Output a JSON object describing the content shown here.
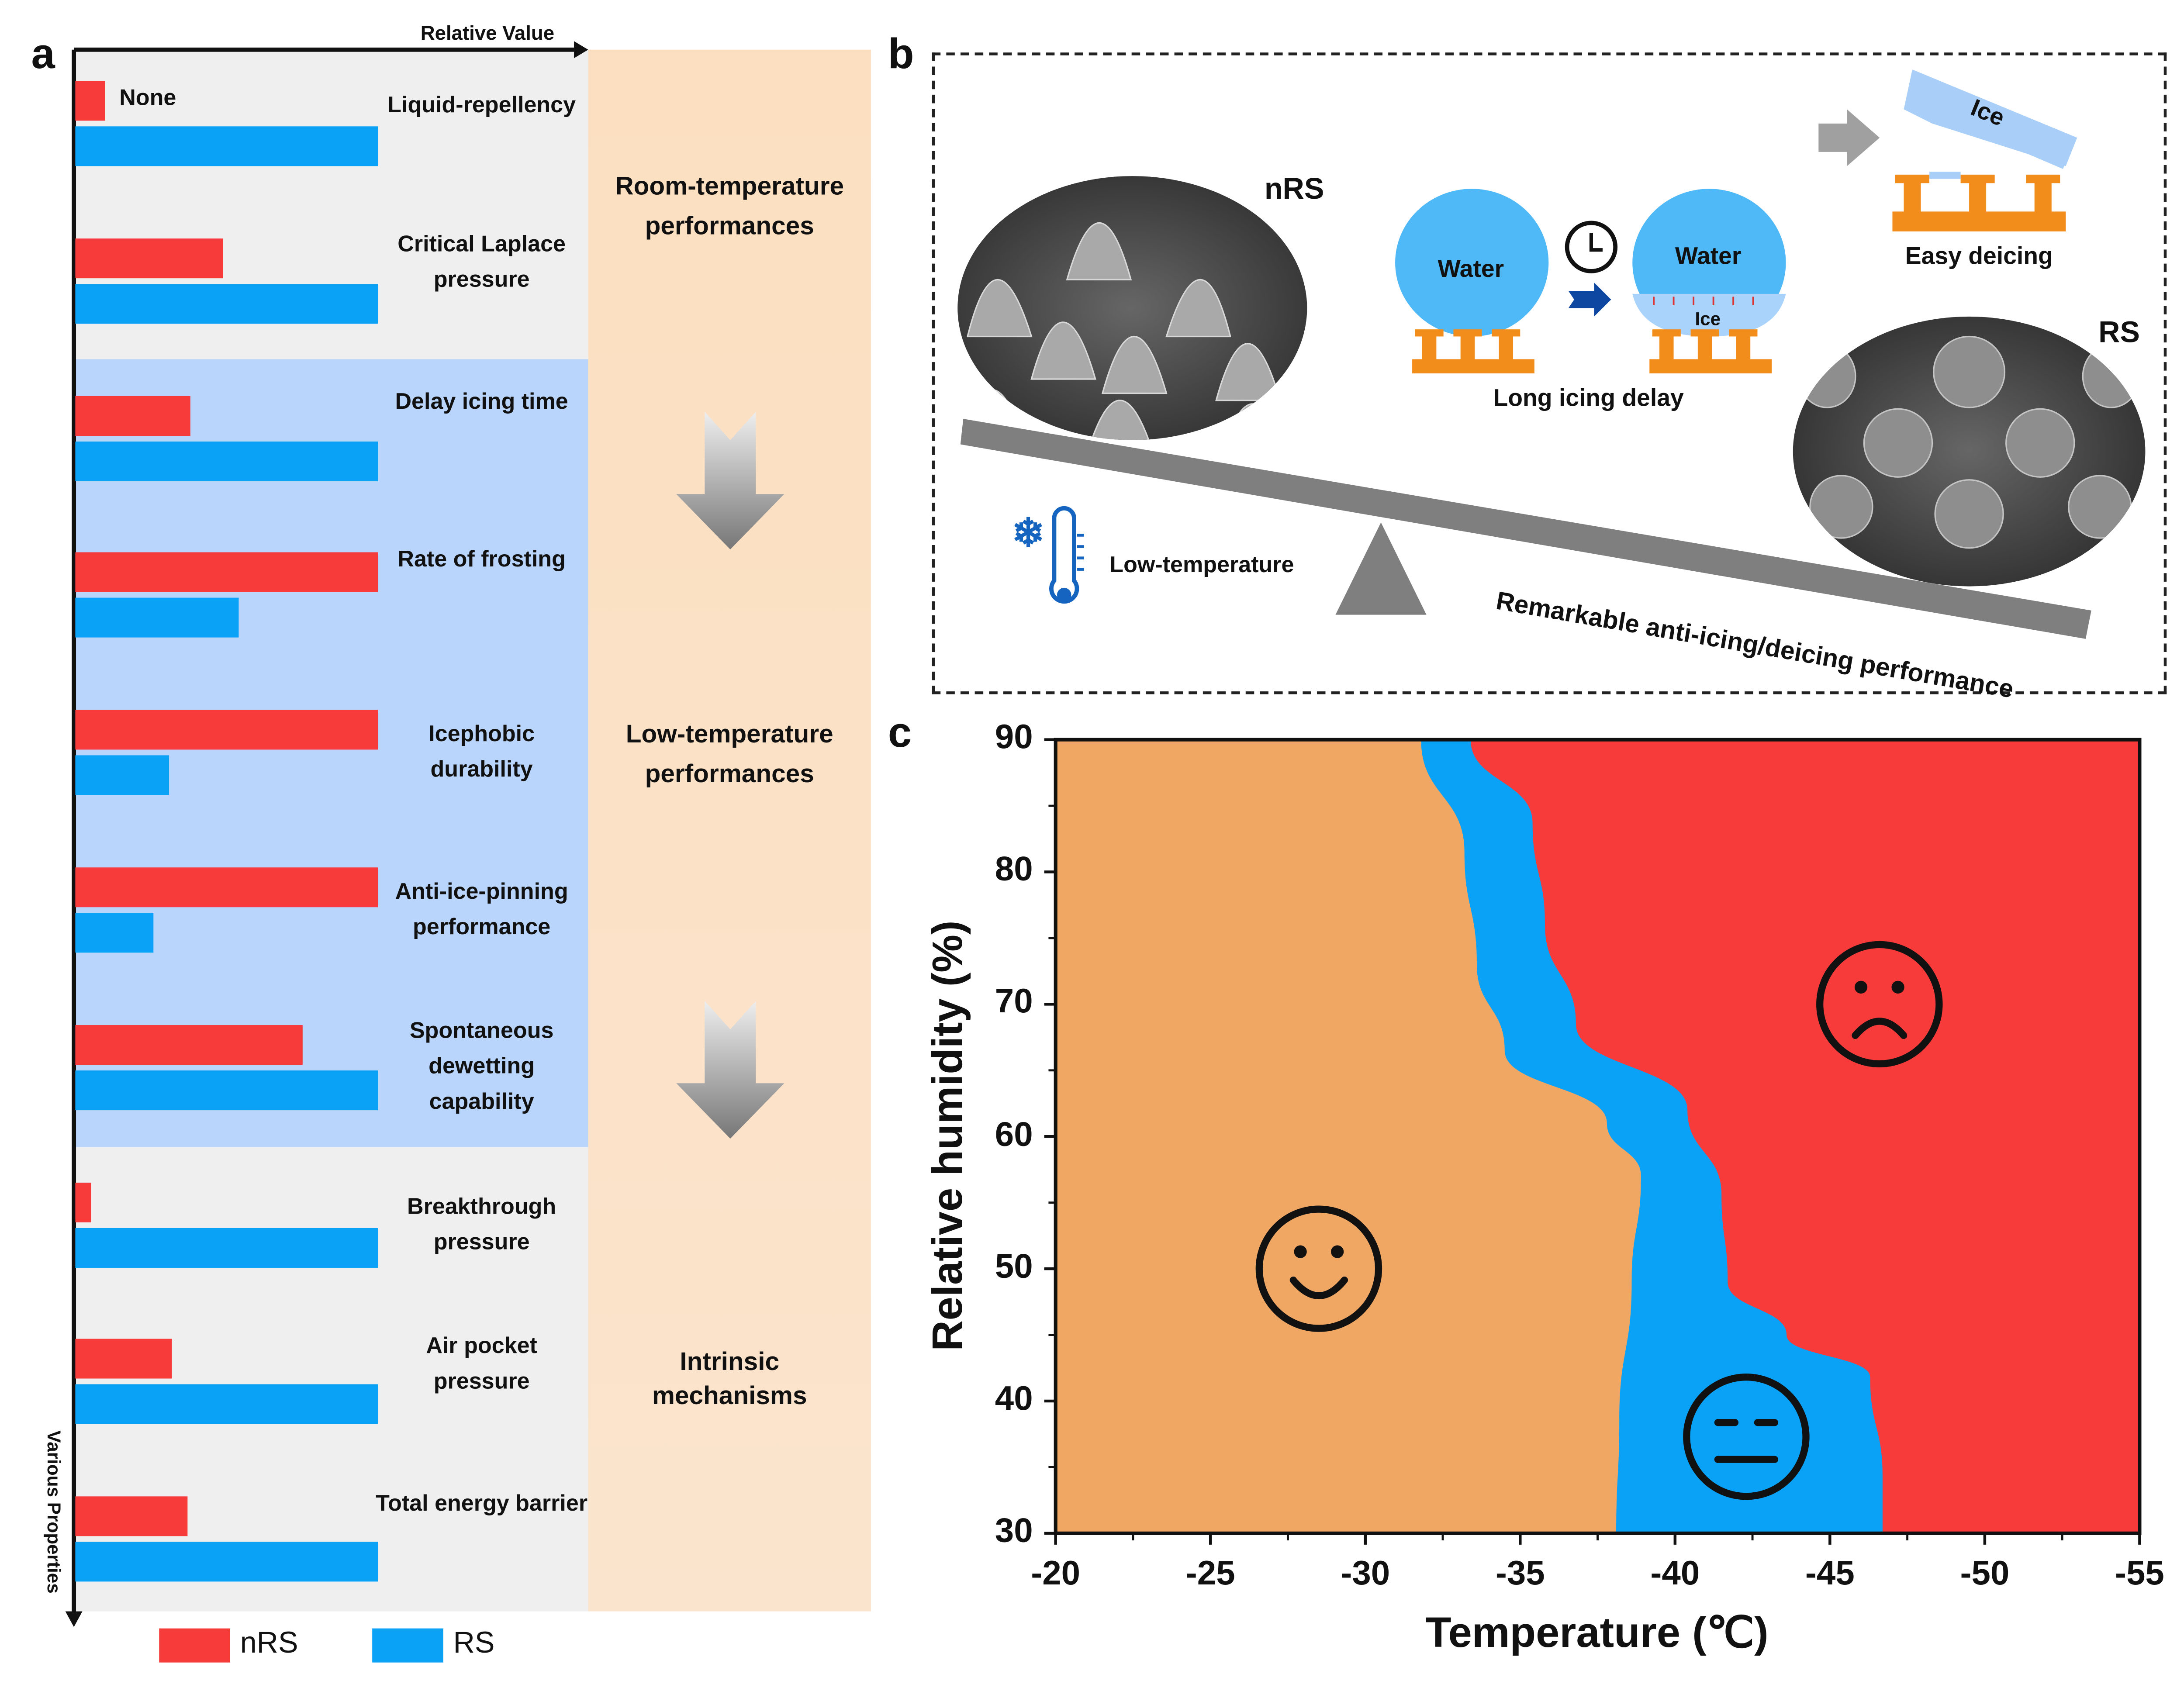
{
  "panel_labels": {
    "a": "a",
    "b": "b",
    "c": "c"
  },
  "colors": {
    "nRS": "#f73b3b",
    "RS": "#0aa2f6",
    "orange_region": "#f0a764",
    "blue_region": "#0aa2f6",
    "red_region": "#f73b3b"
  },
  "chart_data": [
    {
      "type": "bar",
      "orientation": "horizontal",
      "xlabel": "Relative Value",
      "ylabel": "Various Properties",
      "categories": [
        "Liquid-repellency",
        "Critical Laplace pressure",
        "Delay icing time",
        "Rate of frosting",
        "Icephobic durability",
        "Anti-ice-pinning performance",
        "Spontaneous dewetting capability",
        "Breakthrough pressure",
        "Air pocket pressure",
        "Total energy barrier"
      ],
      "series": [
        {
          "name": "nRS",
          "values": [
            0.1,
            0.49,
            0.38,
            1.0,
            1.0,
            1.0,
            0.75,
            0.05,
            0.32,
            0.37
          ]
        },
        {
          "name": "RS",
          "values": [
            1.0,
            1.0,
            1.0,
            0.54,
            0.31,
            0.26,
            1.0,
            1.0,
            1.0,
            1.0
          ]
        }
      ],
      "annotations": [
        "None"
      ],
      "groups": [
        {
          "label": "Room-temperature performances",
          "categories": [
            "Liquid-repellency",
            "Critical Laplace pressure"
          ]
        },
        {
          "label": "Low-temperature performances",
          "categories": [
            "Delay icing time",
            "Rate of frosting",
            "Icephobic durability",
            "Anti-ice-pinning performance",
            "Spontaneous dewetting capability"
          ]
        },
        {
          "label": "Intrinsic mechanisms",
          "categories": [
            "Breakthrough pressure",
            "Air pocket pressure",
            "Total energy barrier"
          ]
        }
      ],
      "legend": "bottom"
    },
    {
      "type": "area",
      "xlabel": "Temperature (℃)",
      "ylabel": "Relative humidity (%)",
      "xlim": [
        -20,
        -55
      ],
      "ylim": [
        30,
        90
      ],
      "xticks": [
        "-20",
        "-25",
        "-30",
        "-35",
        "-40",
        "-45",
        "-50",
        "-55"
      ],
      "yticks": [
        "30",
        "40",
        "50",
        "60",
        "70",
        "80",
        "90"
      ],
      "boundaries": {
        "orange_blue": [
          [
            -31.8,
            90
          ],
          [
            -33.2,
            81.5
          ],
          [
            -33.6,
            73
          ],
          [
            -34.5,
            66.5
          ],
          [
            -37.8,
            61
          ],
          [
            -38.9,
            57
          ],
          [
            -38.6,
            49
          ],
          [
            -38.2,
            38.6
          ],
          [
            -38.1,
            30
          ]
        ],
        "blue_red": [
          [
            -33.4,
            90
          ],
          [
            -35.4,
            83.7
          ],
          [
            -35.8,
            76
          ],
          [
            -36.8,
            68.5
          ],
          [
            -40.4,
            62
          ],
          [
            -41.5,
            55.6
          ],
          [
            -41.7,
            49
          ],
          [
            -43.6,
            45
          ],
          [
            -46.3,
            41.8
          ],
          [
            -46.7,
            34.3
          ],
          [
            -46.7,
            30
          ]
        ]
      },
      "markers": [
        {
          "icon": "happy-face",
          "x": -28.5,
          "y": 50
        },
        {
          "icon": "neutral-face",
          "x": -42.3,
          "y": 37.3
        },
        {
          "icon": "sad-face",
          "x": -46.6,
          "y": 70
        }
      ]
    }
  ],
  "panel_b": {
    "nrs_label": "nRS",
    "rs_label": "RS",
    "water1": "Water",
    "water2": "Water",
    "ice_small": "Ice",
    "ice_block": "Ice",
    "long_icing_delay": "Long icing delay",
    "easy_deicing": "Easy deicing",
    "low_temperature": "Low-temperature",
    "remarkable": "Remarkable anti-icing/deicing performance"
  }
}
